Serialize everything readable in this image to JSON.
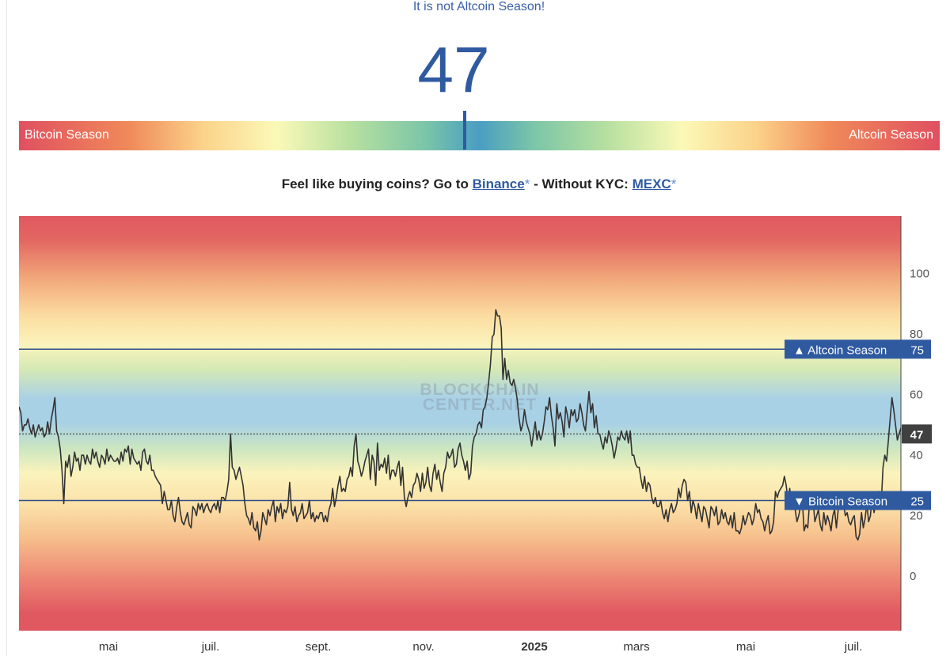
{
  "header": {
    "status_text": "It is not Altcoin Season!",
    "index_value": "47"
  },
  "gauge": {
    "left_label": "Bitcoin Season",
    "right_label": "Altcoin Season",
    "position_fraction": 0.47
  },
  "promo": {
    "text_prefix": "Feel like buying coins? Go to",
    "binance_link": "Binance",
    "star": "*",
    "text_middle": "- Without KYC:",
    "mexc_link": "MEXC",
    "star2": "*"
  },
  "chart_data": {
    "type": "line",
    "watermark": [
      "BLOCKCHAIN",
      "CENTER.NET"
    ],
    "y_ticks": [
      0,
      20,
      40,
      60,
      80,
      100
    ],
    "ylim": [
      -18,
      119
    ],
    "x_labels": [
      "mai",
      "juil.",
      "sept.",
      "nov.",
      "2025",
      "mars",
      "mai",
      "juil."
    ],
    "reference_lines": [
      {
        "label": "▲ Altcoin Season",
        "value": 75
      },
      {
        "label": "▼ Bitcoin Season",
        "value": 25
      }
    ],
    "current_value": 47,
    "series": [
      {
        "values": [
          56,
          54,
          48,
          50,
          50,
          52,
          49,
          47,
          50,
          46,
          48,
          50,
          48,
          49,
          46,
          47,
          51,
          47,
          52,
          55,
          59,
          48,
          46,
          42,
          35,
          24,
          38,
          36,
          40,
          33,
          36,
          41,
          38,
          39,
          35,
          40,
          40,
          37,
          40,
          38,
          37,
          42,
          39,
          41,
          38,
          36,
          40,
          39,
          37,
          42,
          38,
          40,
          39,
          38,
          38,
          39,
          37,
          41,
          38,
          42,
          41,
          43,
          37,
          42,
          39,
          38,
          37,
          38,
          35,
          41,
          42,
          38,
          37,
          40,
          35,
          35,
          33,
          32,
          31,
          30,
          24,
          28,
          25,
          22,
          22,
          25,
          20,
          18,
          23,
          26,
          21,
          18,
          17,
          19,
          21,
          17,
          16,
          23,
          22,
          20,
          24,
          22,
          24,
          21,
          23,
          24,
          22,
          21,
          23,
          24,
          22,
          25,
          21,
          26,
          26,
          25,
          28,
          32,
          47,
          36,
          35,
          32,
          34,
          36,
          33,
          30,
          24,
          20,
          19,
          17,
          21,
          16,
          15,
          18,
          12,
          15,
          21,
          19,
          17,
          22,
          20,
          23,
          25,
          18,
          23,
          21,
          24,
          19,
          22,
          21,
          23,
          31,
          22,
          20,
          23,
          18,
          20,
          21,
          24,
          19,
          20,
          21,
          25,
          19,
          21,
          18,
          20,
          19,
          21,
          21,
          18,
          20,
          18,
          22,
          24,
          29,
          23,
          26,
          30,
          33,
          28,
          29,
          28,
          32,
          33,
          36,
          33,
          43,
          47,
          38,
          36,
          33,
          35,
          38,
          40,
          42,
          32,
          40,
          38,
          30,
          44,
          35,
          37,
          36,
          39,
          34,
          40,
          32,
          35,
          35,
          33,
          36,
          38,
          30,
          36,
          26,
          23,
          26,
          28,
          26,
          30,
          31,
          34,
          32,
          28,
          34,
          29,
          31,
          36,
          30,
          28,
          34,
          37,
          32,
          35,
          31,
          28,
          34,
          36,
          41,
          39,
          40,
          42,
          36,
          37,
          42,
          44,
          40,
          38,
          35,
          38,
          32,
          34,
          43,
          46,
          47,
          50,
          51,
          49,
          55,
          56,
          59,
          64,
          70,
          79,
          80,
          88,
          86,
          86,
          82,
          65,
          72,
          65,
          68,
          64,
          63,
          65,
          62,
          58,
          52,
          48,
          50,
          55,
          51,
          49,
          47,
          43,
          47,
          51,
          45,
          48,
          45,
          47,
          51,
          56,
          55,
          59,
          53,
          49,
          43,
          57,
          52,
          54,
          51,
          46,
          56,
          53,
          49,
          55,
          53,
          55,
          51,
          52,
          57,
          54,
          50,
          48,
          55,
          61,
          54,
          57,
          49,
          53,
          47,
          47,
          44,
          42,
          46,
          44,
          48,
          46,
          43,
          39,
          42,
          46,
          45,
          48,
          46,
          45,
          48,
          44,
          48,
          40,
          40,
          37,
          36,
          36,
          32,
          29,
          33,
          28,
          31,
          30,
          26,
          24,
          26,
          23,
          23,
          25,
          21,
          19,
          22,
          18,
          22,
          24,
          21,
          22,
          24,
          29,
          26,
          30,
          32,
          31,
          25,
          28,
          21,
          25,
          23,
          19,
          24,
          21,
          18,
          23,
          22,
          19,
          16,
          23,
          22,
          20,
          23,
          17,
          18,
          22,
          19,
          21,
          18,
          17,
          20,
          16,
          21,
          15,
          15,
          14,
          16,
          20,
          17,
          19,
          21,
          20,
          17,
          19,
          24,
          21,
          22,
          19,
          18,
          15,
          18,
          20,
          14,
          15,
          18,
          28,
          26,
          28,
          29,
          30,
          33,
          30,
          25,
          29,
          22,
          24,
          22,
          18,
          20,
          23,
          25,
          15,
          17,
          16,
          24,
          22,
          25,
          18,
          20,
          22,
          17,
          15,
          21,
          17,
          20,
          18,
          15,
          20,
          22,
          16,
          22,
          26,
          22,
          24,
          20,
          21,
          18,
          17,
          19,
          20,
          13,
          12,
          14,
          21,
          16,
          19,
          24,
          18,
          20,
          27,
          21,
          24,
          27,
          28,
          24,
          36,
          40,
          38,
          45,
          52,
          59,
          55,
          50,
          45,
          47,
          49
        ]
      }
    ]
  },
  "colors": {
    "accent": "#2f5aa0",
    "line": "#333333",
    "axis_badge_dark": "#404040",
    "band_red": "#e05860",
    "band_blue": "#a9d1e6"
  }
}
